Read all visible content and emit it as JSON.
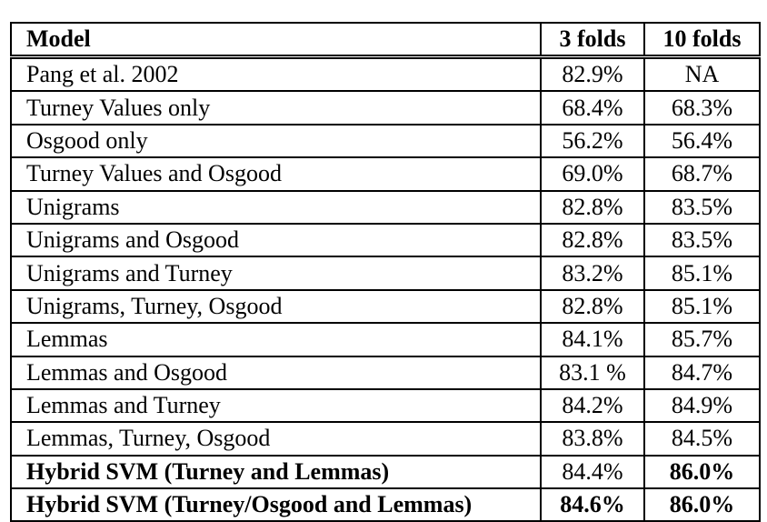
{
  "table": {
    "headers": {
      "model": "Model",
      "three_folds": "3 folds",
      "ten_folds": "10 folds"
    },
    "rows": [
      {
        "model": "Pang et al. 2002",
        "three_folds": "82.9%",
        "ten_folds": "NA",
        "bold_model": false,
        "bold_three": false,
        "bold_ten": false
      },
      {
        "model": "Turney Values only",
        "three_folds": "68.4%",
        "ten_folds": "68.3%",
        "bold_model": false,
        "bold_three": false,
        "bold_ten": false
      },
      {
        "model": "Osgood only",
        "three_folds": "56.2%",
        "ten_folds": "56.4%",
        "bold_model": false,
        "bold_three": false,
        "bold_ten": false
      },
      {
        "model": "Turney Values and Osgood",
        "three_folds": "69.0%",
        "ten_folds": "68.7%",
        "bold_model": false,
        "bold_three": false,
        "bold_ten": false
      },
      {
        "model": "Unigrams",
        "three_folds": "82.8%",
        "ten_folds": "83.5%",
        "bold_model": false,
        "bold_three": false,
        "bold_ten": false
      },
      {
        "model": "Unigrams and Osgood",
        "three_folds": "82.8%",
        "ten_folds": "83.5%",
        "bold_model": false,
        "bold_three": false,
        "bold_ten": false
      },
      {
        "model": "Unigrams and Turney",
        "three_folds": "83.2%",
        "ten_folds": "85.1%",
        "bold_model": false,
        "bold_three": false,
        "bold_ten": false
      },
      {
        "model": "Unigrams, Turney, Osgood",
        "three_folds": "82.8%",
        "ten_folds": "85.1%",
        "bold_model": false,
        "bold_three": false,
        "bold_ten": false
      },
      {
        "model": "Lemmas",
        "three_folds": "84.1%",
        "ten_folds": "85.7%",
        "bold_model": false,
        "bold_three": false,
        "bold_ten": false
      },
      {
        "model": "Lemmas and Osgood",
        "three_folds": "83.1 %",
        "ten_folds": "84.7%",
        "bold_model": false,
        "bold_three": false,
        "bold_ten": false
      },
      {
        "model": "Lemmas and Turney",
        "three_folds": "84.2%",
        "ten_folds": "84.9%",
        "bold_model": false,
        "bold_three": false,
        "bold_ten": false
      },
      {
        "model": "Lemmas, Turney, Osgood",
        "three_folds": "83.8%",
        "ten_folds": "84.5%",
        "bold_model": false,
        "bold_three": false,
        "bold_ten": false
      },
      {
        "model": "Hybrid SVM (Turney and Lemmas)",
        "three_folds": "84.4%",
        "ten_folds": "86.0%",
        "bold_model": true,
        "bold_three": false,
        "bold_ten": true
      },
      {
        "model": "Hybrid SVM (Turney/Osgood and Lemmas)",
        "three_folds": "84.6%",
        "ten_folds": "86.0%",
        "bold_model": true,
        "bold_three": true,
        "bold_ten": true
      }
    ]
  }
}
